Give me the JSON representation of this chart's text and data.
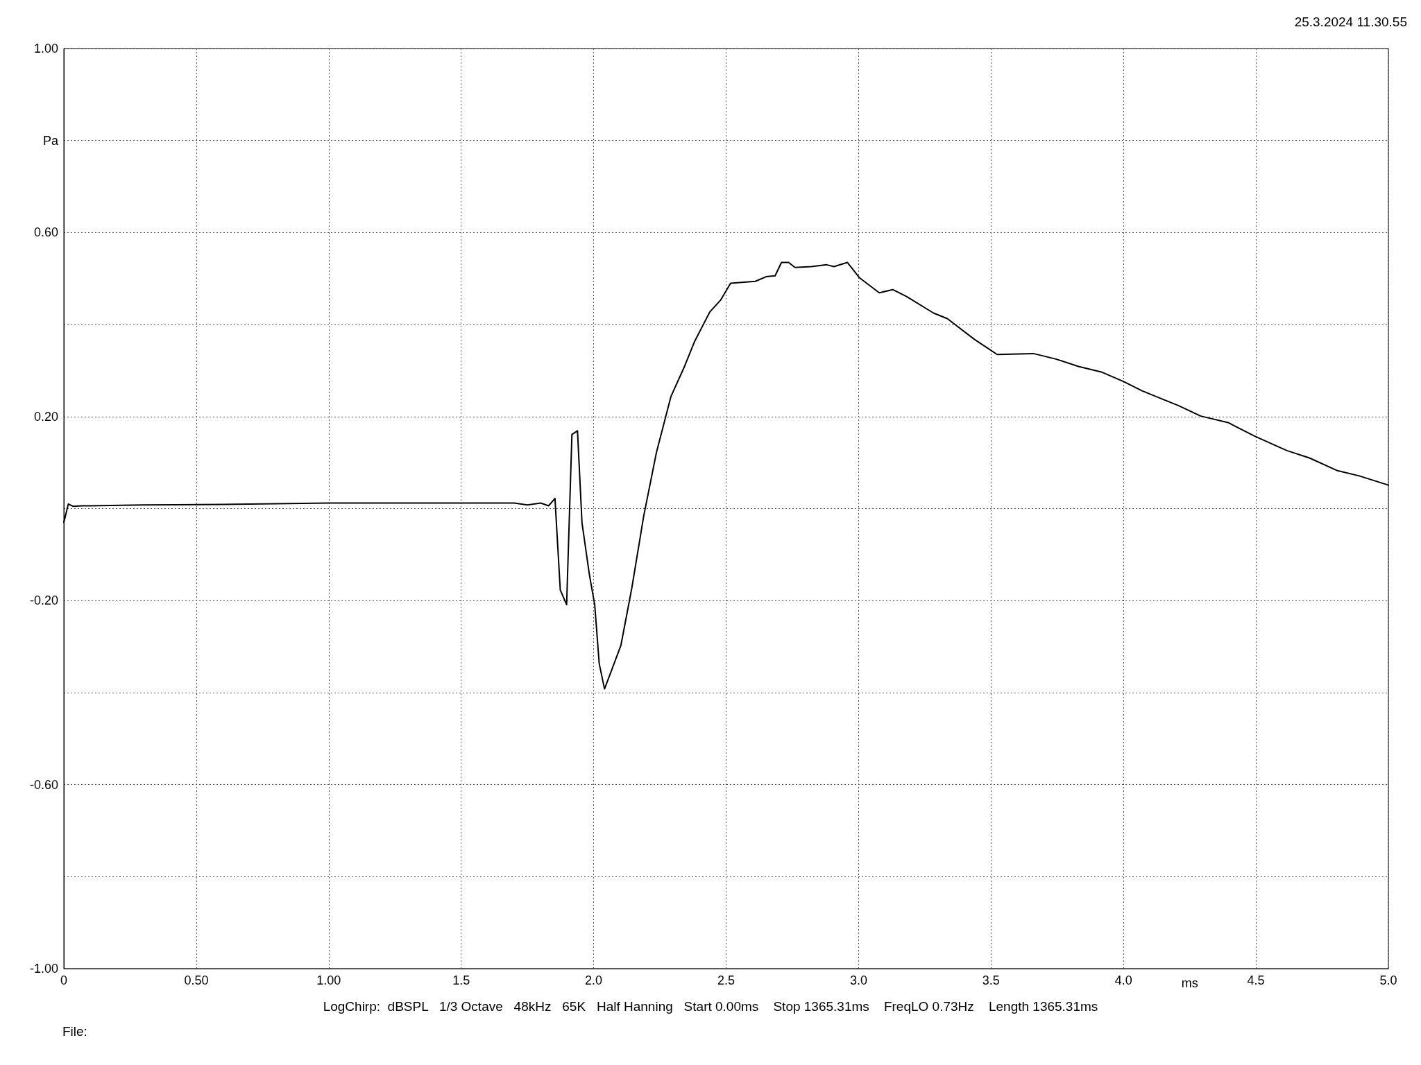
{
  "chart_data": {
    "type": "line",
    "xlabel": "ms",
    "ylabel": "Pa",
    "annotations": [
      "25.3.2024 11.30.55",
      "LogChirp:  dBSPL   1/3 Octave   48kHz   65K   Half Hanning   Start 0.00ms    Stop 1365.31ms    FreqLO 0.73Hz    Length 1365.31ms",
      "File:"
    ],
    "x": [
      0,
      0.017,
      0.034,
      0.068,
      0.1,
      0.3,
      0.6,
      1.0,
      1.3,
      1.6,
      1.7,
      1.75,
      1.8,
      1.83,
      1.854,
      1.874,
      1.898,
      1.918,
      1.939,
      1.956,
      1.984,
      2.004,
      2.021,
      2.041,
      2.062,
      2.103,
      2.144,
      2.189,
      2.237,
      2.292,
      2.343,
      2.38,
      2.438,
      2.479,
      2.517,
      2.61,
      2.651,
      2.685,
      2.709,
      2.736,
      2.76,
      2.822,
      2.88,
      2.907,
      2.958,
      3.003,
      3.078,
      3.129,
      3.181,
      3.283,
      3.335,
      3.437,
      3.523,
      3.66,
      3.745,
      3.83,
      3.916,
      4.001,
      4.07,
      4.155,
      4.207,
      4.292,
      4.395,
      4.497,
      4.617,
      4.702,
      4.805,
      4.89,
      5.0
    ],
    "series": [
      {
        "color": "#000000",
        "values": [
          -0.03,
          0.01,
          0.005,
          0.006,
          0.006,
          0.008,
          0.009,
          0.012,
          0.012,
          0.012,
          0.012,
          0.008,
          0.012,
          0.006,
          0.022,
          -0.177,
          -0.209,
          0.161,
          0.169,
          -0.031,
          -0.144,
          -0.209,
          -0.337,
          -0.392,
          -0.36,
          -0.297,
          -0.173,
          -0.016,
          0.122,
          0.244,
          0.309,
          0.362,
          0.427,
          0.453,
          0.49,
          0.494,
          0.504,
          0.506,
          0.535,
          0.535,
          0.524,
          0.526,
          0.53,
          0.526,
          0.535,
          0.502,
          0.469,
          0.476,
          0.461,
          0.425,
          0.413,
          0.368,
          0.335,
          0.337,
          0.325,
          0.309,
          0.297,
          0.276,
          0.256,
          0.236,
          0.224,
          0.201,
          0.187,
          0.157,
          0.126,
          0.11,
          0.083,
          0.071,
          0.051
        ]
      }
    ],
    "xlim": [
      0,
      5
    ],
    "xticks": [
      0,
      {
        "value": 0.5,
        "label": "0.50"
      },
      {
        "value": 1,
        "label": "1.00"
      },
      1.5,
      {
        "value": 2,
        "label": "2.0"
      },
      2.5,
      {
        "value": 3,
        "label": "3.0"
      },
      3.5,
      {
        "value": 4,
        "label": "4.0"
      },
      4.5,
      {
        "value": 5,
        "label": "5.0"
      }
    ],
    "ylim": [
      -1,
      1
    ],
    "yticks": [
      {
        "value": -1,
        "label": "-1.00"
      },
      {
        "value": -0.8,
        "label": null
      },
      {
        "value": -0.6,
        "label": "-0.60"
      },
      {
        "value": -0.4,
        "label": null
      },
      {
        "value": -0.2,
        "label": "-0.20"
      },
      {
        "value": 0,
        "label": null
      },
      {
        "value": 0.2,
        "label": "0.20"
      },
      {
        "value": 0.4,
        "label": null
      },
      {
        "value": 0.6,
        "label": "0.60"
      },
      {
        "value": 0.8,
        "label": null
      },
      {
        "value": 1,
        "label": "1.00"
      }
    ],
    "grid": true,
    "marker": "none",
    "line_style": "solid"
  }
}
